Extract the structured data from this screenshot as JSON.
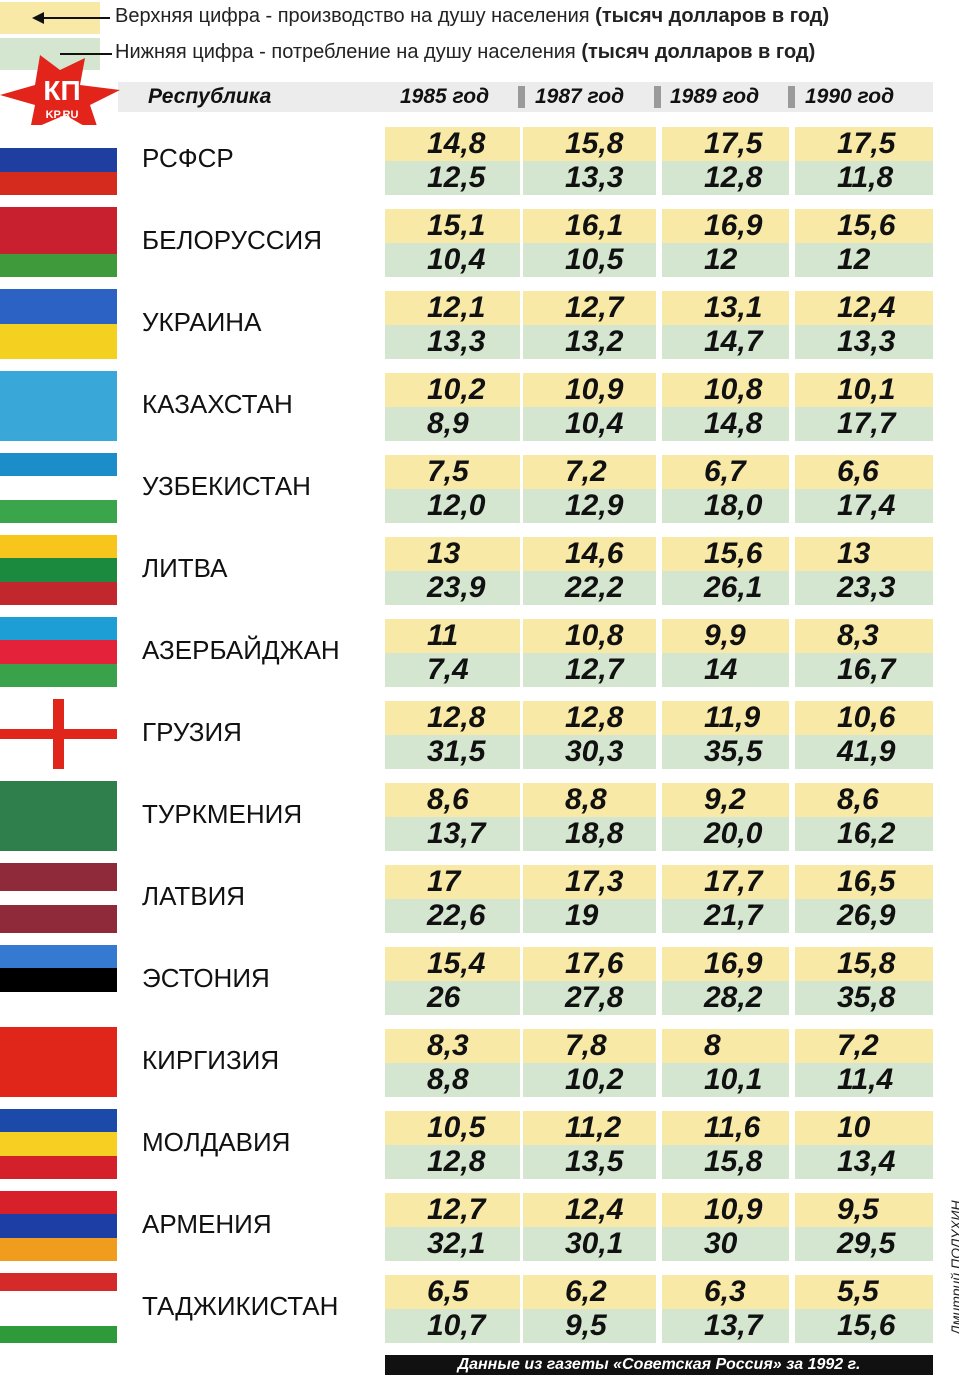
{
  "legend": [
    {
      "text": "Верхняя цифра - производство на душу населения",
      "bold": "(тысяч долларов в год)"
    },
    {
      "text": "Нижняя цифра - потребление на душу населения",
      "bold": "(тысяч долларов в год)"
    }
  ],
  "logo": {
    "main": "КП",
    "sub": "KP.RU"
  },
  "table": {
    "header": [
      "Республика",
      "1985 год",
      "1987 год",
      "1989 год",
      "1990 год"
    ],
    "rows": [
      {
        "name": "РСФСР",
        "top": [
          "14,8",
          "15,8",
          "17,5",
          "17,5"
        ],
        "bottom": [
          "12,5",
          "13,3",
          "12,8",
          "11,8"
        ]
      },
      {
        "name": "БЕЛОРУССИЯ",
        "top": [
          "15,1",
          "16,1",
          "16,9",
          "15,6"
        ],
        "bottom": [
          "10,4",
          "10,5",
          "12",
          "12"
        ]
      },
      {
        "name": "УКРАИНА",
        "top": [
          "12,1",
          "12,7",
          "13,1",
          "12,4"
        ],
        "bottom": [
          "13,3",
          "13,2",
          "14,7",
          "13,3"
        ]
      },
      {
        "name": "КАЗАХСТАН",
        "top": [
          "10,2",
          "10,9",
          "10,8",
          "10,1"
        ],
        "bottom": [
          "8,9",
          "10,4",
          "14,8",
          "17,7"
        ]
      },
      {
        "name": "УЗБЕКИСТАН",
        "top": [
          "7,5",
          "7,2",
          "6,7",
          "6,6"
        ],
        "bottom": [
          "12,0",
          "12,9",
          "18,0",
          "17,4"
        ]
      },
      {
        "name": "ЛИТВА",
        "top": [
          "13",
          "14,6",
          "15,6",
          "13"
        ],
        "bottom": [
          "23,9",
          "22,2",
          "26,1",
          "23,3"
        ]
      },
      {
        "name": "АЗЕРБАЙДЖАН",
        "top": [
          "11",
          "10,8",
          "9,9",
          "8,3"
        ],
        "bottom": [
          "7,4",
          "12,7",
          "14",
          "16,7"
        ]
      },
      {
        "name": "ГРУЗИЯ",
        "top": [
          "12,8",
          "12,8",
          "11,9",
          "10,6"
        ],
        "bottom": [
          "31,5",
          "30,3",
          "35,5",
          "41,9"
        ]
      },
      {
        "name": "ТУРКМЕНИЯ",
        "top": [
          "8,6",
          "8,8",
          "9,2",
          "8,6"
        ],
        "bottom": [
          "13,7",
          "18,8",
          "20,0",
          "16,2"
        ]
      },
      {
        "name": "ЛАТВИЯ",
        "top": [
          "17",
          "17,3",
          "17,7",
          "16,5"
        ],
        "bottom": [
          "22,6",
          "19",
          "21,7",
          "26,9"
        ]
      },
      {
        "name": "ЭСТОНИЯ",
        "top": [
          "15,4",
          "17,6",
          "16,9",
          "15,8"
        ],
        "bottom": [
          "26",
          "27,8",
          "28,2",
          "35,8"
        ]
      },
      {
        "name": "КИРГИЗИЯ",
        "top": [
          "8,3",
          "7,8",
          "8",
          "7,2"
        ],
        "bottom": [
          "8,8",
          "10,2",
          "10,1",
          "11,4"
        ]
      },
      {
        "name": "МОЛДАВИЯ",
        "top": [
          "10,5",
          "11,2",
          "11,6",
          "10"
        ],
        "bottom": [
          "12,8",
          "13,5",
          "15,8",
          "13,4"
        ]
      },
      {
        "name": "АРМЕНИЯ",
        "top": [
          "12,7",
          "12,4",
          "10,9",
          "9,5"
        ],
        "bottom": [
          "32,1",
          "30,1",
          "30",
          "29,5"
        ]
      },
      {
        "name": "ТАДЖИКИСТАН",
        "top": [
          "6,5",
          "6,2",
          "6,3",
          "5,5"
        ],
        "bottom": [
          "10,7",
          "9,5",
          "13,7",
          "15,6"
        ]
      }
    ]
  },
  "footer": "Данные из газеты «Советская Россия» за 1992 г.",
  "credit": "Дмитрий ПОЛУХИН"
}
